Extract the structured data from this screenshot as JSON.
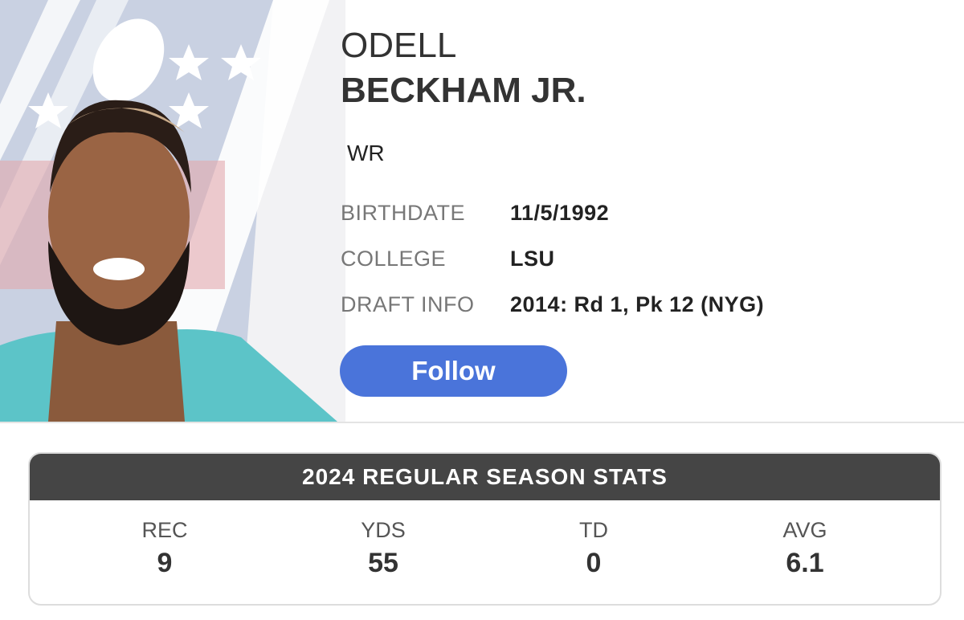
{
  "player": {
    "first_name": "ODELL",
    "last_name": "BECKHAM JR.",
    "position": "WR",
    "info": [
      {
        "label": "BIRTHDATE",
        "value": "11/5/1992"
      },
      {
        "label": "COLLEGE",
        "value": "LSU"
      },
      {
        "label": "DRAFT INFO",
        "value": "2014: Rd 1, Pk 12 (NYG)"
      }
    ],
    "follow_button": "Follow"
  },
  "stats": {
    "title": "2024 REGULAR SEASON STATS",
    "columns": [
      {
        "label": "REC",
        "value": 9
      },
      {
        "label": "YDS",
        "value": 55
      },
      {
        "label": "TD",
        "value": 0
      },
      {
        "label": "AVG",
        "value": 6.1
      }
    ]
  }
}
